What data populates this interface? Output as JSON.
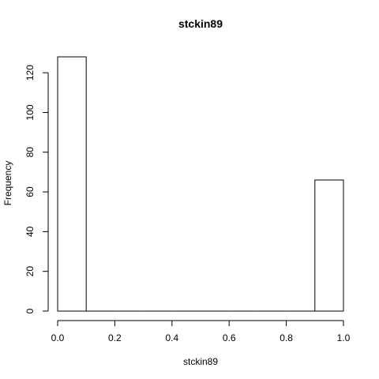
{
  "chart_data": {
    "type": "bar",
    "title": "stckin89",
    "xlabel": "stckin89",
    "ylabel": "Frequency",
    "bins": [
      {
        "x0": 0.0,
        "x1": 0.1,
        "count": 128
      },
      {
        "x0": 0.1,
        "x1": 0.2,
        "count": 0
      },
      {
        "x0": 0.2,
        "x1": 0.3,
        "count": 0
      },
      {
        "x0": 0.3,
        "x1": 0.4,
        "count": 0
      },
      {
        "x0": 0.4,
        "x1": 0.5,
        "count": 0
      },
      {
        "x0": 0.5,
        "x1": 0.6,
        "count": 0
      },
      {
        "x0": 0.6,
        "x1": 0.7,
        "count": 0
      },
      {
        "x0": 0.7,
        "x1": 0.8,
        "count": 0
      },
      {
        "x0": 0.8,
        "x1": 0.9,
        "count": 0
      },
      {
        "x0": 0.9,
        "x1": 1.0,
        "count": 66
      }
    ],
    "x_ticks": [
      "0.0",
      "0.2",
      "0.4",
      "0.6",
      "0.8",
      "1.0"
    ],
    "y_ticks": [
      "0",
      "20",
      "40",
      "60",
      "80",
      "100",
      "120"
    ],
    "xlim": [
      0.0,
      1.0
    ],
    "ylim": [
      0,
      128
    ],
    "grid": false
  }
}
